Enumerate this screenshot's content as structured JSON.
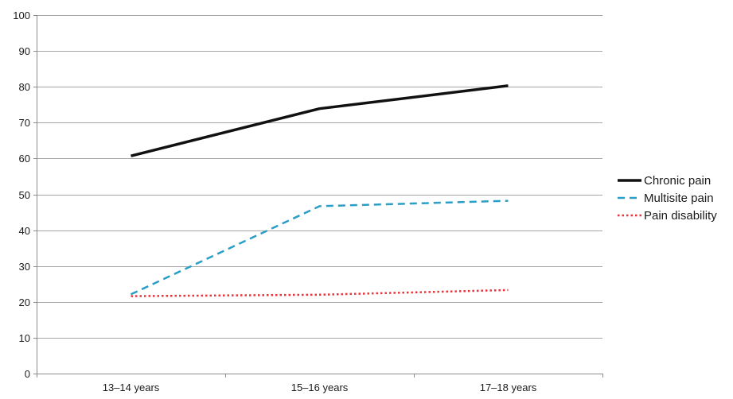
{
  "chart_data": {
    "type": "line",
    "title": "",
    "xlabel": "",
    "ylabel": "",
    "categories": [
      "13–14 years",
      "15–16 years",
      "17–18 years"
    ],
    "ylim": [
      0,
      100
    ],
    "yticks": [
      0,
      10,
      20,
      30,
      40,
      50,
      60,
      70,
      80,
      90,
      100
    ],
    "grid": "horizontal",
    "legend_position": "right",
    "series": [
      {
        "name": "Chronic pain",
        "values": [
          60.7,
          73.9,
          80.3
        ],
        "color": "#111111",
        "style": "solid"
      },
      {
        "name": "Multisite pain",
        "values": [
          22.1,
          46.7,
          48.2
        ],
        "color": "#2a9ec7",
        "style": "dashed"
      },
      {
        "name": "Pain disability",
        "values": [
          21.6,
          22.0,
          23.3
        ],
        "color": "#e8343a",
        "style": "dotted"
      }
    ]
  }
}
